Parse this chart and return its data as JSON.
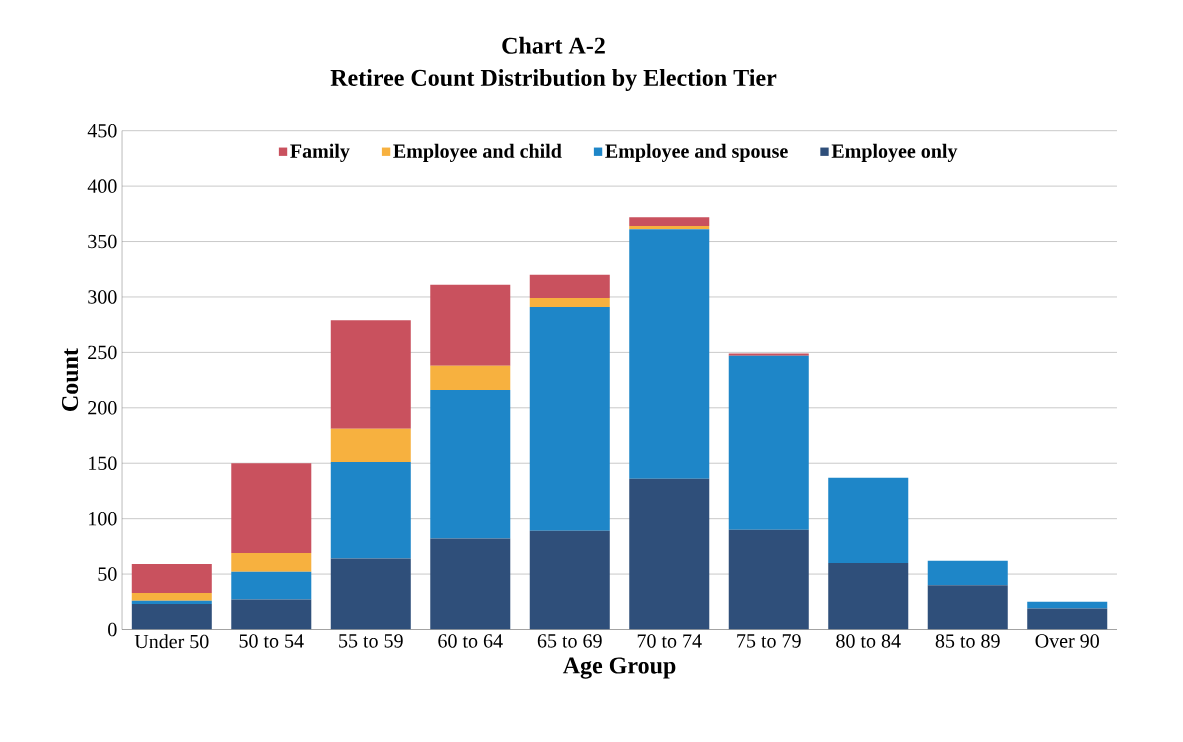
{
  "chart_data": {
    "type": "bar",
    "title": "Chart A-2",
    "subtitle": "Retiree Count Distribution by Election Tier",
    "xlabel": "Age Group",
    "ylabel": "Count",
    "categories": [
      "Under 50",
      "50 to 54",
      "55 to 59",
      "60 to 64",
      "65 to 69",
      "70 to 74",
      "75 to 79",
      "80 to 84",
      "85 to 89",
      "Over 90"
    ],
    "stacked": true,
    "series": [
      {
        "name": "Employee only",
        "color": "#2f4f7a",
        "values": [
          23,
          27,
          64,
          82,
          89,
          136,
          90,
          60,
          40,
          19
        ]
      },
      {
        "name": "Employee and spouse",
        "color": "#1e86c8",
        "values": [
          3,
          25,
          87,
          134,
          202,
          225,
          157,
          77,
          22,
          6
        ]
      },
      {
        "name": "Employee and child",
        "color": "#f7b13f",
        "values": [
          7,
          17,
          30,
          22,
          8,
          3,
          0,
          0,
          0,
          0
        ]
      },
      {
        "name": "Family",
        "color": "#c9515e",
        "values": [
          26,
          81,
          98,
          73,
          21,
          8,
          2,
          0,
          0,
          0
        ]
      }
    ],
    "ylim": [
      0,
      450
    ],
    "yticks": [
      0,
      50,
      100,
      150,
      200,
      250,
      300,
      350,
      400,
      450
    ],
    "grid": "y",
    "legend": "top"
  }
}
